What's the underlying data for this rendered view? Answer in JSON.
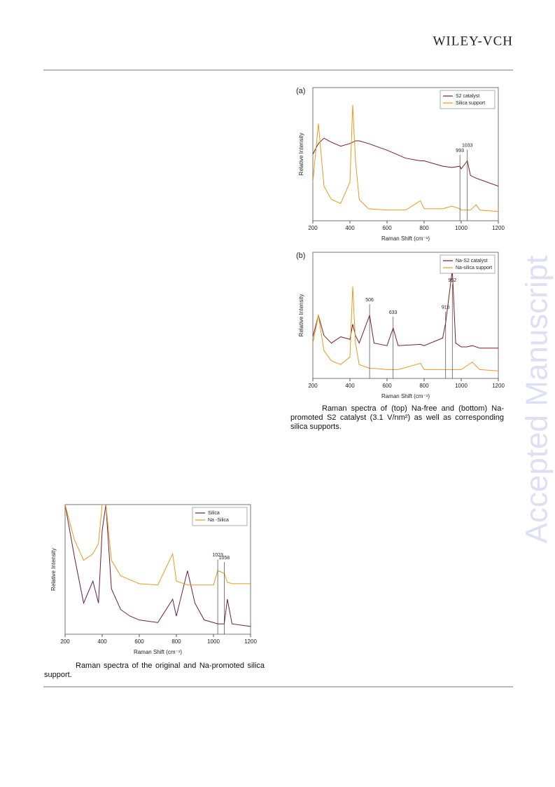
{
  "header": {
    "logo": "WILEY-VCH"
  },
  "watermark": "Accepted Manuscript",
  "chart_data": [
    {
      "type": "line",
      "panel": "(a)",
      "xlabel": "Raman Shift (cm⁻¹)",
      "ylabel": "Relative Intensity",
      "x": [
        200,
        230,
        260,
        300,
        350,
        400,
        415,
        430,
        450,
        500,
        600,
        700,
        780,
        800,
        900,
        950,
        993,
        1000,
        1033,
        1050,
        1080,
        1100,
        1200
      ],
      "series": [
        {
          "name": "S2 catalyst",
          "color": "#7a1f1f",
          "values": [
            50,
            58,
            62,
            59,
            56,
            58,
            59,
            60,
            60,
            58,
            53,
            47,
            45,
            45,
            41,
            40,
            41,
            39,
            45,
            34,
            32,
            31,
            26
          ]
        },
        {
          "name": "Silica support",
          "color": "#e89a1c",
          "values": [
            29,
            73,
            26,
            16,
            13,
            29,
            87,
            45,
            16,
            9,
            8,
            8,
            15,
            9,
            9,
            11,
            9,
            8,
            8,
            8,
            12,
            8,
            7
          ]
        }
      ],
      "annotations": [
        {
          "text": "993",
          "x": 993
        },
        {
          "text": "1033",
          "x": 1033
        }
      ],
      "xlim": [
        200,
        1200
      ],
      "xticks": [
        200,
        400,
        600,
        800,
        1000,
        1200
      ],
      "ylim": [
        0,
        100
      ],
      "legend": "upper right"
    },
    {
      "type": "line",
      "panel": "(b)",
      "xlabel": "Raman Shift (cm⁻¹)",
      "ylabel": "Relative Intensity",
      "x": [
        200,
        230,
        260,
        300,
        350,
        400,
        415,
        430,
        450,
        506,
        530,
        600,
        633,
        660,
        780,
        800,
        900,
        916,
        952,
        970,
        1000,
        1030,
        1060,
        1100,
        1200
      ],
      "series": [
        {
          "name": "Na-S2 catalyst",
          "color": "#7a1f1f",
          "values": [
            33,
            50,
            34,
            28,
            33,
            31,
            43,
            34,
            28,
            50,
            28,
            26,
            40,
            26,
            27,
            26,
            32,
            44,
            86,
            28,
            25,
            25,
            26,
            24,
            24
          ]
        },
        {
          "name": "Na-silica support",
          "color": "#e89a1c",
          "values": [
            28,
            50,
            22,
            14,
            11,
            17,
            73,
            28,
            11,
            8,
            8,
            7,
            7,
            7,
            12,
            7,
            7,
            7,
            7,
            7,
            7,
            10,
            13,
            7,
            6
          ]
        }
      ],
      "annotations": [
        {
          "text": "506",
          "x": 506
        },
        {
          "text": "633",
          "x": 633
        },
        {
          "text": "916",
          "x": 916
        },
        {
          "text": "952",
          "x": 952
        }
      ],
      "xlim": [
        200,
        1200
      ],
      "xticks": [
        200,
        400,
        600,
        800,
        1000,
        1200
      ],
      "ylim": [
        0,
        100
      ],
      "legend": "upper right"
    },
    {
      "type": "line",
      "xlabel": "Raman Shift (cm⁻¹)",
      "ylabel": "Relative Intensity",
      "x": [
        200,
        250,
        300,
        350,
        380,
        400,
        420,
        450,
        500,
        550,
        600,
        700,
        780,
        800,
        860,
        900,
        950,
        1000,
        1023,
        1058,
        1075,
        1100,
        1200
      ],
      "series": [
        {
          "name": "Silica",
          "color": "#6a1f3a",
          "values": [
            100,
            60,
            24,
            41,
            24,
            80,
            100,
            35,
            19,
            14,
            11,
            9,
            27,
            14,
            49,
            24,
            11,
            9,
            8,
            8,
            27,
            8,
            6
          ]
        },
        {
          "name": "Na -Silica",
          "color": "#e89a1c",
          "values": [
            100,
            73,
            57,
            62,
            70,
            100,
            100,
            57,
            45,
            42,
            39,
            38,
            62,
            41,
            38,
            38,
            38,
            38,
            49,
            47,
            40,
            39,
            39
          ]
        }
      ],
      "annotations": [
        {
          "text": "1023",
          "x": 1023
        },
        {
          "text": "1058",
          "x": 1058
        }
      ],
      "xlim": [
        200,
        1200
      ],
      "xticks": [
        200,
        400,
        600,
        800,
        1000,
        1200
      ],
      "ylim": [
        0,
        100
      ],
      "legend": "upper right"
    }
  ],
  "captions": [
    "Raman spectra of (top) Na-free and (bottom) Na-promoted S2 catalyst (3.1 V/nm²) as well as corresponding silica supports.",
    "Raman spectra of the original and Na-promoted silica support."
  ]
}
